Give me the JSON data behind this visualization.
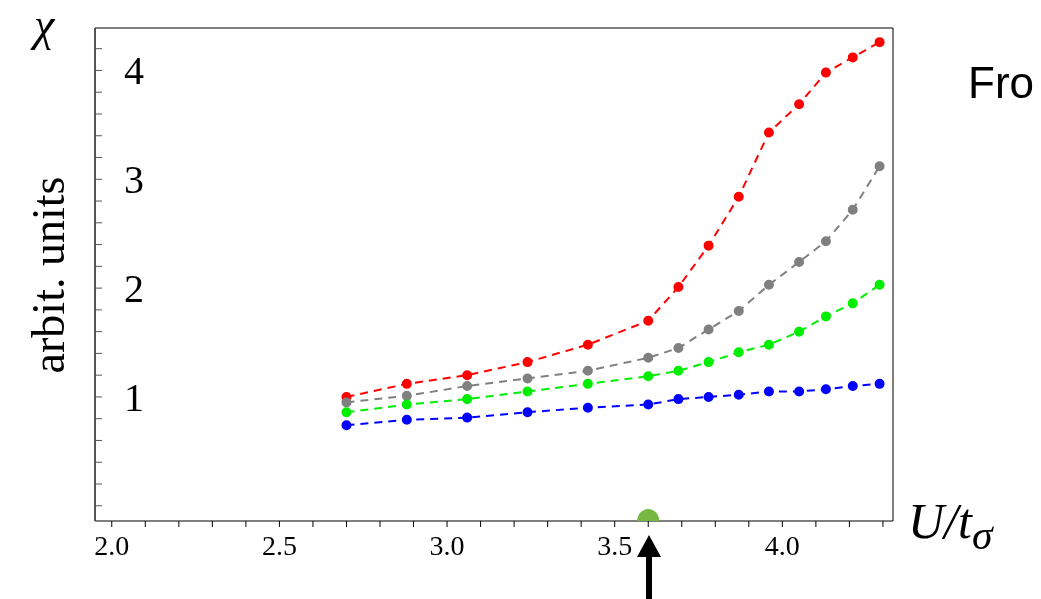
{
  "chart_data": {
    "type": "line",
    "ylabel": "arbit. units",
    "xlabel": "U/t$_{σ}$",
    "annotations": [
      "χ",
      "Fro"
    ],
    "x": [
      2.7,
      2.88,
      3.06,
      3.24,
      3.42,
      3.6,
      3.69,
      3.78,
      3.87,
      3.96,
      4.05,
      4.13,
      4.21,
      4.29
    ],
    "series": [
      {
        "color": "#ff0000",
        "values": [
          1.0,
          1.12,
          1.2,
          1.32,
          1.48,
          1.7,
          2.01,
          2.39,
          2.84,
          3.43,
          3.69,
          3.98,
          4.12,
          4.26
        ]
      },
      {
        "color": "#808080",
        "values": [
          0.95,
          1.01,
          1.1,
          1.17,
          1.24,
          1.36,
          1.45,
          1.62,
          1.79,
          2.03,
          2.24,
          2.43,
          2.72,
          3.12
        ]
      },
      {
        "color": "#00ee00",
        "values": [
          0.86,
          0.93,
          0.98,
          1.05,
          1.12,
          1.19,
          1.24,
          1.32,
          1.41,
          1.48,
          1.6,
          1.74,
          1.86,
          2.03
        ]
      },
      {
        "color": "#0000ff",
        "values": [
          0.74,
          0.79,
          0.81,
          0.86,
          0.9,
          0.93,
          0.98,
          1.0,
          1.02,
          1.05,
          1.05,
          1.07,
          1.1,
          1.12
        ]
      },
      {
        "type": "scatter",
        "color": "#77b843",
        "x": [
          3.6
        ],
        "values": [
          -0.14
        ]
      }
    ],
    "xlim": [
      1.95,
      4.33
    ],
    "xticks": [
      {
        "value": 2.0,
        "label": "2.0"
      },
      {
        "value": 2.1,
        "label": null
      },
      {
        "value": 2.2,
        "label": null
      },
      {
        "value": 2.3,
        "label": null
      },
      {
        "value": 2.4,
        "label": null
      },
      {
        "value": 2.5,
        "label": "2.5"
      },
      {
        "value": 2.6,
        "label": null
      },
      {
        "value": 2.7,
        "label": null
      },
      {
        "value": 2.8,
        "label": null
      },
      {
        "value": 2.9,
        "label": null
      },
      {
        "value": 3.0,
        "label": "3.0"
      },
      {
        "value": 3.1,
        "label": null
      },
      {
        "value": 3.2,
        "label": null
      },
      {
        "value": 3.3,
        "label": null
      },
      {
        "value": 3.4,
        "label": null
      },
      {
        "value": 3.5,
        "label": "3.5"
      },
      {
        "value": 3.6,
        "label": null
      },
      {
        "value": 3.7,
        "label": null
      },
      {
        "value": 3.8,
        "label": null
      },
      {
        "value": 3.9,
        "label": null
      },
      {
        "value": 4.0,
        "label": "4.0"
      },
      {
        "value": 4.1,
        "label": null
      },
      {
        "value": 4.2,
        "label": null
      },
      {
        "value": 4.3,
        "label": null
      }
    ],
    "ylim": [
      -0.14,
      4.39
    ],
    "yticks": [
      {
        "value": 0,
        "label": null
      },
      {
        "value": 0.2,
        "label": null
      },
      {
        "value": 0.4,
        "label": null
      },
      {
        "value": 0.6,
        "label": null
      },
      {
        "value": 0.8,
        "label": null
      },
      1,
      {
        "value": 1.2,
        "label": null
      },
      {
        "value": 1.4,
        "label": null
      },
      {
        "value": 1.6,
        "label": null
      },
      {
        "value": 1.8,
        "label": null
      },
      2,
      {
        "value": 2.2,
        "label": null
      },
      {
        "value": 2.4,
        "label": null
      },
      {
        "value": 2.6,
        "label": null
      },
      {
        "value": 2.8,
        "label": null
      },
      3,
      {
        "value": 3.2,
        "label": null
      },
      {
        "value": 3.4,
        "label": null
      },
      {
        "value": 3.6,
        "label": null
      },
      {
        "value": 3.8,
        "label": null
      },
      4,
      {
        "value": 4.2,
        "label": null
      }
    ],
    "grid": false,
    "marker": "circle",
    "line_style": "dashed"
  }
}
